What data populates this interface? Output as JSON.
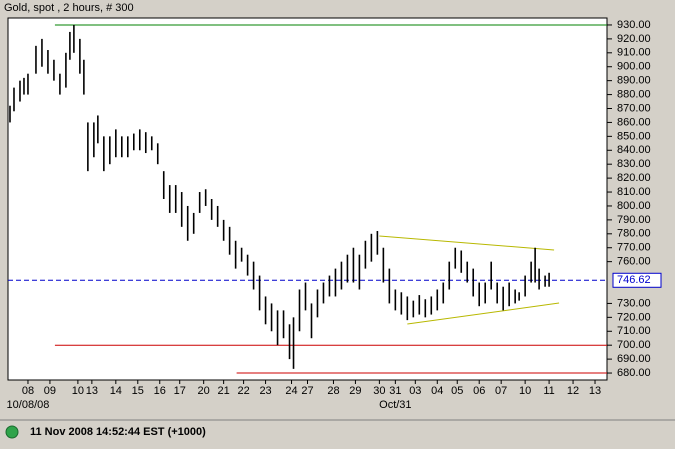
{
  "chart_data": {
    "type": "ohlc",
    "title": "Gold, spot , 2 hours, # 300",
    "status": "11 Nov 2008 14:52:44 EST (+1000)",
    "x": [
      1,
      3,
      6,
      8,
      10,
      14,
      17,
      20,
      23,
      26,
      29,
      31,
      33,
      36,
      38,
      40,
      43,
      45,
      48,
      51,
      54,
      57,
      60,
      63,
      66,
      69,
      72,
      75,
      78,
      81,
      84,
      87,
      90,
      93,
      96,
      99,
      102,
      105,
      108,
      111,
      114,
      117,
      120,
      123,
      126,
      129,
      132,
      135,
      138,
      141,
      143,
      146,
      149,
      152,
      155,
      158,
      161,
      164,
      167,
      170,
      173,
      176,
      179,
      182,
      185,
      188,
      191,
      194,
      197,
      200,
      203,
      206,
      209,
      212,
      215,
      218,
      221,
      224,
      227,
      230,
      233,
      236,
      239,
      242,
      245,
      248,
      251,
      254,
      256,
      259,
      262,
      264,
      266,
      269,
      271
    ],
    "high": [
      872,
      885,
      890,
      892,
      895,
      915,
      920,
      912,
      905,
      895,
      910,
      925,
      930,
      920,
      905,
      860,
      860,
      865,
      850,
      850,
      855,
      850,
      850,
      852,
      855,
      853,
      850,
      845,
      825,
      815,
      815,
      810,
      800,
      795,
      810,
      812,
      805,
      800,
      790,
      785,
      775,
      770,
      765,
      760,
      750,
      735,
      730,
      725,
      725,
      715,
      720,
      740,
      745,
      730,
      740,
      745,
      750,
      755,
      760,
      765,
      770,
      765,
      775,
      780,
      782,
      770,
      755,
      740,
      738,
      735,
      732,
      736,
      733,
      735,
      740,
      745,
      760,
      770,
      768,
      760,
      755,
      745,
      745,
      760,
      745,
      742,
      745,
      740,
      738,
      750,
      760,
      770,
      755,
      750,
      752
    ],
    "low": [
      860,
      868,
      875,
      880,
      880,
      895,
      900,
      895,
      890,
      880,
      885,
      905,
      910,
      895,
      880,
      825,
      835,
      845,
      825,
      830,
      835,
      835,
      835,
      840,
      840,
      838,
      840,
      830,
      805,
      795,
      795,
      785,
      775,
      780,
      795,
      800,
      790,
      785,
      775,
      765,
      755,
      760,
      750,
      740,
      725,
      715,
      710,
      700,
      705,
      690,
      683,
      710,
      725,
      705,
      720,
      730,
      735,
      735,
      740,
      745,
      745,
      740,
      755,
      760,
      765,
      745,
      730,
      725,
      722,
      718,
      720,
      722,
      720,
      722,
      725,
      730,
      740,
      755,
      752,
      745,
      735,
      728,
      730,
      740,
      730,
      725,
      728,
      730,
      732,
      735,
      745,
      745,
      740,
      742,
      742
    ],
    "color": "#000000",
    "xlim": [
      0,
      300
    ],
    "xticks": [
      {
        "value": 10,
        "label": "08"
      },
      {
        "value": 21,
        "label": "09"
      },
      {
        "value": 35,
        "label": "10"
      },
      {
        "value": 42,
        "label": "13"
      },
      {
        "value": 54,
        "label": "14"
      },
      {
        "value": 65,
        "label": "15"
      },
      {
        "value": 76,
        "label": "16"
      },
      {
        "value": 86,
        "label": "17"
      },
      {
        "value": 98,
        "label": "20"
      },
      {
        "value": 108,
        "label": "21"
      },
      {
        "value": 118,
        "label": "22"
      },
      {
        "value": 129,
        "label": "23"
      },
      {
        "value": 142,
        "label": "24"
      },
      {
        "value": 150,
        "label": "27"
      },
      {
        "value": 163,
        "label": "28"
      },
      {
        "value": 174,
        "label": "29"
      },
      {
        "value": 186,
        "label": "30"
      },
      {
        "value": 194,
        "label": "31"
      },
      {
        "value": 204,
        "label": "03"
      },
      {
        "value": 215,
        "label": "04"
      },
      {
        "value": 225,
        "label": "05"
      },
      {
        "value": 236,
        "label": "06"
      },
      {
        "value": 247,
        "label": "07"
      },
      {
        "value": 259,
        "label": "10"
      },
      {
        "value": 271,
        "label": "11"
      },
      {
        "value": 283,
        "label": "12"
      },
      {
        "value": 294,
        "label": "13"
      }
    ],
    "x_sublabels": [
      {
        "value": 10,
        "label": "10/08/08"
      },
      {
        "value": 194,
        "label": "Oct/31"
      }
    ],
    "ylim": [
      675,
      935
    ],
    "yticks": [
      {
        "value": 680,
        "label": "680.00"
      },
      {
        "value": 690,
        "label": "690.00"
      },
      {
        "value": 700,
        "label": "700.00"
      },
      {
        "value": 710,
        "label": "710.00"
      },
      {
        "value": 720,
        "label": "720.00"
      },
      {
        "value": 730,
        "label": "730.00"
      },
      {
        "value": 760,
        "label": "760.00"
      },
      {
        "value": 770,
        "label": "770.00"
      },
      {
        "value": 780,
        "label": "780.00"
      },
      {
        "value": 790,
        "label": "790.00"
      },
      {
        "value": 800,
        "label": "800.00"
      },
      {
        "value": 810,
        "label": "810.00"
      },
      {
        "value": 820,
        "label": "820.00"
      },
      {
        "value": 830,
        "label": "830.00"
      },
      {
        "value": 840,
        "label": "840.00"
      },
      {
        "value": 850,
        "label": "850.00"
      },
      {
        "value": 860,
        "label": "860.00"
      },
      {
        "value": 870,
        "label": "870.00"
      },
      {
        "value": 880,
        "label": "880.00"
      },
      {
        "value": 890,
        "label": "890.00"
      },
      {
        "value": 900,
        "label": "900.00"
      },
      {
        "value": 910,
        "label": "910.00"
      },
      {
        "value": 920,
        "label": "920.00"
      },
      {
        "value": 930,
        "label": "930.00"
      }
    ],
    "current_price": 746.62,
    "current_color": "#0000cc",
    "lines": [
      {
        "x": [
          23.5,
          300
        ],
        "y": [
          930,
          930
        ],
        "color": "#008000"
      },
      {
        "x": [
          23.5,
          300
        ],
        "y": [
          700,
          700
        ],
        "color": "#cc0000"
      },
      {
        "x": [
          114.5,
          300
        ],
        "y": [
          680,
          680
        ],
        "color": "#cc0000"
      },
      {
        "x": [
          186,
          273.5
        ],
        "y": [
          778.4,
          768.4
        ],
        "color": "#b8b800"
      },
      {
        "x": [
          200,
          276
        ],
        "y": [
          715.2,
          730.3
        ],
        "color": "#b8b800"
      }
    ]
  }
}
